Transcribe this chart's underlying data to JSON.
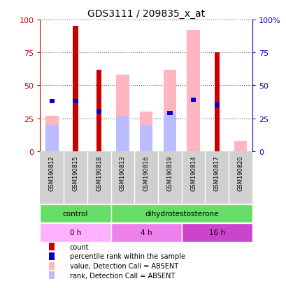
{
  "title": "GDS3111 / 209835_x_at",
  "samples": [
    "GSM190812",
    "GSM190815",
    "GSM190818",
    "GSM190813",
    "GSM190816",
    "GSM190819",
    "GSM190814",
    "GSM190817",
    "GSM190820"
  ],
  "count": [
    0,
    95,
    62,
    0,
    0,
    0,
    0,
    75,
    0
  ],
  "percentile_rank": [
    38,
    38,
    30,
    0,
    0,
    29,
    39,
    35,
    0
  ],
  "value_absent": [
    27,
    0,
    0,
    58,
    30,
    62,
    92,
    0,
    8
  ],
  "rank_absent": [
    20,
    0,
    0,
    27,
    20,
    28,
    0,
    0,
    0
  ],
  "has_count": [
    false,
    true,
    true,
    false,
    false,
    false,
    false,
    true,
    false
  ],
  "has_percentile": [
    true,
    true,
    true,
    false,
    false,
    true,
    true,
    true,
    false
  ],
  "has_value_absent": [
    true,
    false,
    false,
    true,
    true,
    true,
    true,
    false,
    true
  ],
  "has_rank_absent": [
    true,
    false,
    false,
    true,
    true,
    true,
    false,
    false,
    false
  ],
  "agent_groups": [
    {
      "label": "control",
      "start": 0,
      "end": 3
    },
    {
      "label": "dihydrotestosterone",
      "start": 3,
      "end": 9
    }
  ],
  "time_groups": [
    {
      "label": "0 h",
      "start": 0,
      "end": 3
    },
    {
      "label": "4 h",
      "start": 3,
      "end": 6
    },
    {
      "label": "16 h",
      "start": 6,
      "end": 9
    }
  ],
  "yticks": [
    0,
    25,
    50,
    75,
    100
  ],
  "count_color": "#CC0000",
  "percentile_color": "#0000CC",
  "value_absent_color": "#FFB6C1",
  "rank_absent_color": "#BBBBFF",
  "left_axis_color": "#CC0000",
  "right_axis_color": "#0000CC",
  "bg_color": "#D0D0D0",
  "agent_color": "#66DD66",
  "time_colors": [
    "#FFB0FF",
    "#EE80EE",
    "#CC44CC"
  ],
  "label_color": "#333333"
}
